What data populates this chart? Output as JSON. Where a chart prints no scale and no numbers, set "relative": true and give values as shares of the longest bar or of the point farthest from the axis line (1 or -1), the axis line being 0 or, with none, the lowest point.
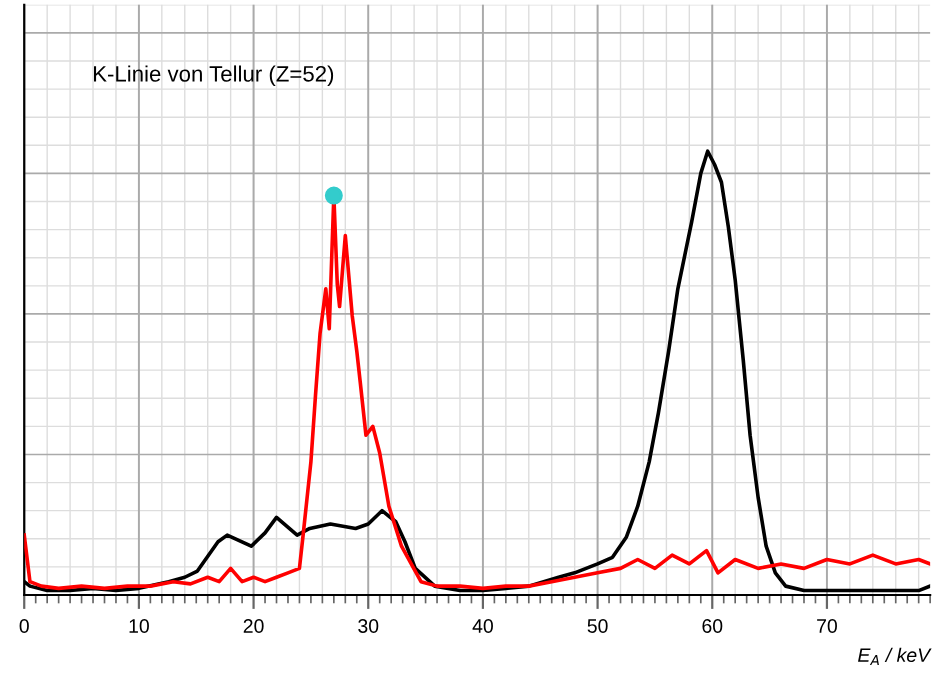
{
  "chart_data": {
    "type": "line",
    "relative": true,
    "xlabel": "E$_{A}$ / keV",
    "annotations": [
      "K-Linie von Tellur (Z=52)"
    ],
    "xlim": [
      0,
      79
    ],
    "xticks": [
      0,
      10,
      20,
      30,
      40,
      50,
      60,
      70
    ],
    "grid": true,
    "marker": "none",
    "line_style": "solid",
    "series": [
      {
        "color": "#000000",
        "x": [
          0,
          0.5,
          2,
          4,
          6,
          8,
          10,
          12.6,
          14,
          15.1,
          16.9,
          17.7,
          19.8,
          21,
          22.0,
          23.8,
          24.9,
          26.7,
          28.9,
          30,
          31.2,
          32.4,
          33.2,
          34.1,
          35.8,
          38,
          40,
          42,
          44,
          46.6,
          48,
          50,
          51.3,
          52.5,
          53.5,
          54.5,
          55.3,
          56.2,
          57.0,
          58.2,
          59.0,
          59.6,
          60.2,
          60.8,
          61.4,
          62.0,
          62.7,
          63.3,
          64.0,
          64.7,
          65.5,
          66.4,
          68,
          70,
          72,
          74,
          76,
          78,
          79
        ],
        "values": [
          0.03,
          0.02,
          0.01,
          0.01,
          0.015,
          0.01,
          0.015,
          0.03,
          0.04,
          0.054,
          0.12,
          0.135,
          0.11,
          0.14,
          0.175,
          0.135,
          0.15,
          0.16,
          0.15,
          0.16,
          0.19,
          0.165,
          0.12,
          0.06,
          0.02,
          0.01,
          0.01,
          0.015,
          0.02,
          0.04,
          0.05,
          0.07,
          0.085,
          0.13,
          0.2,
          0.3,
          0.41,
          0.55,
          0.69,
          0.84,
          0.95,
          1.0,
          0.97,
          0.93,
          0.83,
          0.71,
          0.53,
          0.36,
          0.22,
          0.11,
          0.05,
          0.02,
          0.01,
          0.01,
          0.01,
          0.01,
          0.01,
          0.01,
          0.02
        ]
      },
      {
        "color": "#ff0000",
        "x": [
          0,
          0.5,
          1.5,
          3,
          5,
          7,
          9,
          11,
          13,
          14.5,
          16,
          17,
          18,
          19,
          20,
          21,
          22,
          23,
          24,
          24.3,
          25.0,
          25.4,
          25.8,
          26.3,
          26.6,
          27.0,
          27.3,
          27.5,
          28.0,
          28.3,
          28.6,
          29.0,
          29.3,
          29.8,
          30.4,
          31.0,
          31.8,
          32.9,
          34.6,
          36,
          38,
          40,
          42,
          44,
          46,
          48,
          50,
          52,
          53.5,
          55,
          56.5,
          58,
          59.5,
          60.5,
          62,
          64,
          66,
          68,
          70,
          72,
          74,
          76,
          78,
          79
        ],
        "values": [
          0.135,
          0.03,
          0.02,
          0.015,
          0.02,
          0.015,
          0.02,
          0.02,
          0.03,
          0.025,
          0.04,
          0.03,
          0.06,
          0.03,
          0.04,
          0.03,
          0.04,
          0.05,
          0.06,
          0.13,
          0.3,
          0.45,
          0.59,
          0.69,
          0.6,
          0.9,
          0.7,
          0.65,
          0.81,
          0.72,
          0.63,
          0.55,
          0.48,
          0.36,
          0.38,
          0.32,
          0.2,
          0.11,
          0.03,
          0.02,
          0.02,
          0.015,
          0.02,
          0.02,
          0.03,
          0.04,
          0.05,
          0.06,
          0.08,
          0.06,
          0.09,
          0.07,
          0.1,
          0.05,
          0.08,
          0.06,
          0.07,
          0.06,
          0.08,
          0.07,
          0.09,
          0.07,
          0.08,
          0.07
        ]
      },
      {
        "type": "scatter",
        "color": "#33cccc",
        "marker": "circle",
        "x": [
          27.0
        ],
        "values": [
          0.9
        ]
      }
    ]
  }
}
